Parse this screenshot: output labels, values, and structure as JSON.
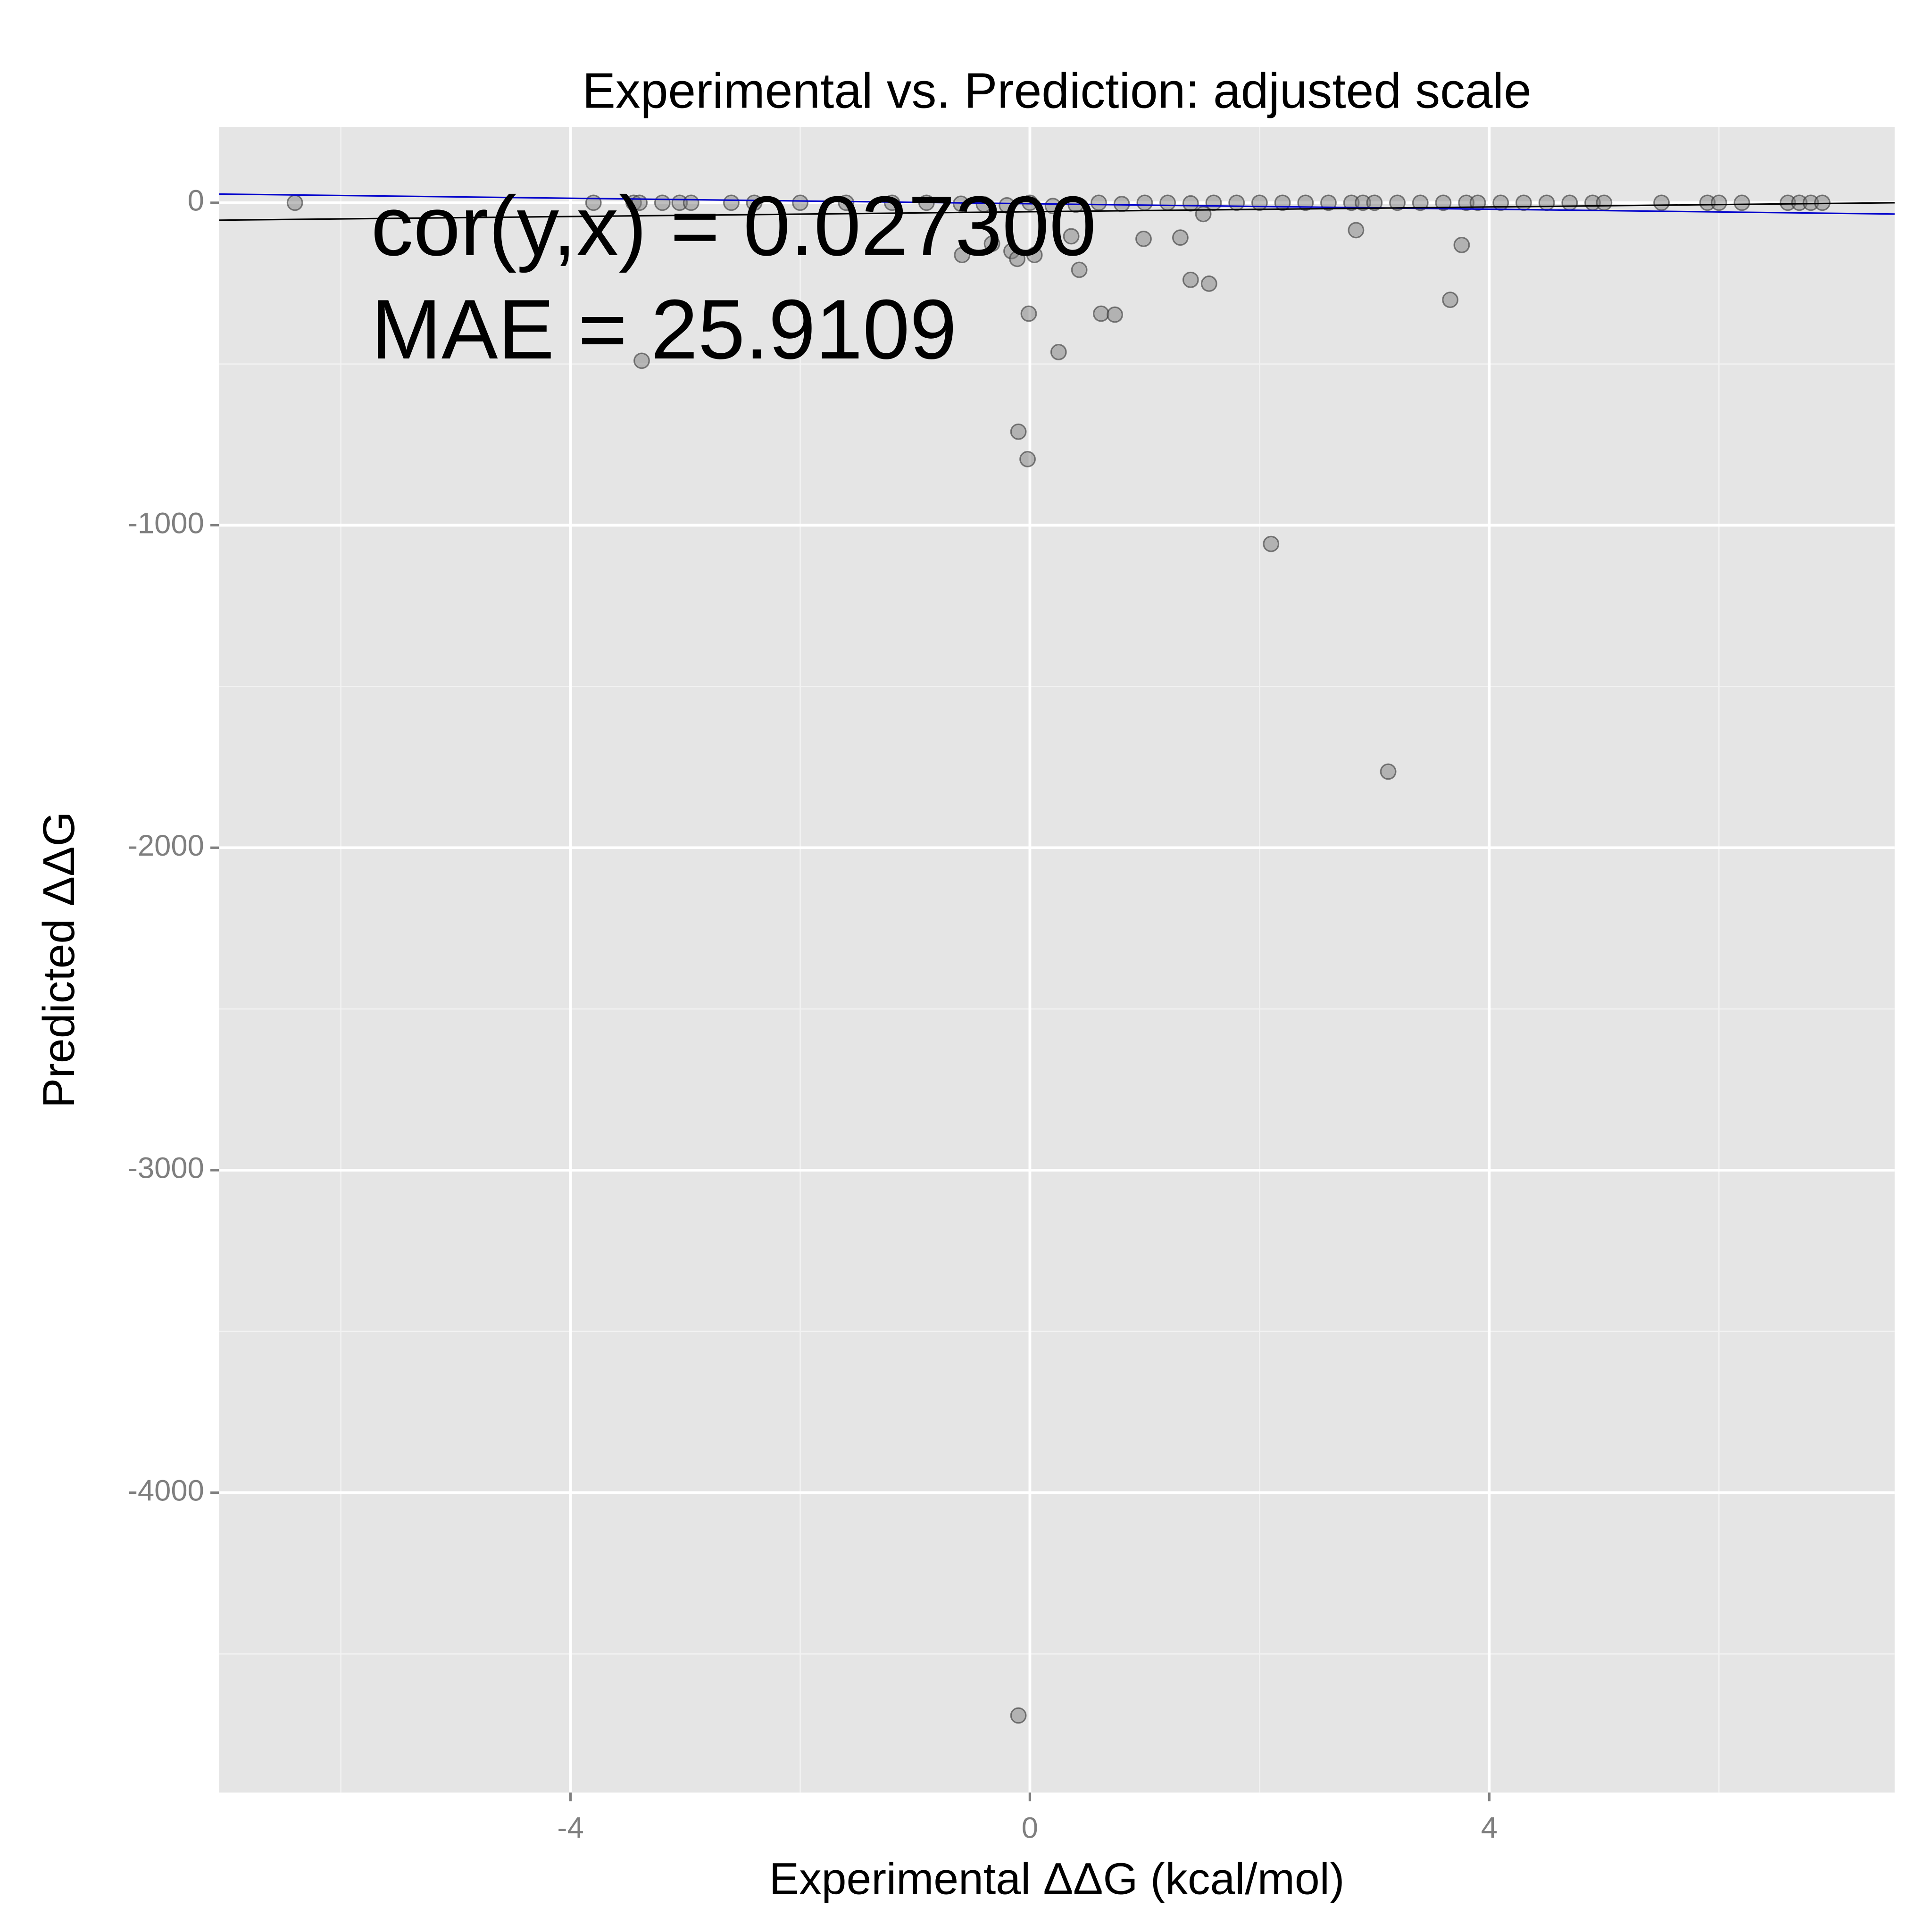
{
  "chart_data": {
    "type": "scatter",
    "title": "Experimental vs. Prediction: adjusted scale",
    "x_label": "Experimental ΔΔG (kcal/mol)",
    "y_label": "Predicted ΔΔG",
    "annotations": [
      "cor(y,x) = 0.027300",
      "MAE = 25.9109"
    ],
    "xlim": [
      -7.06,
      7.53
    ],
    "ylim": [
      -4930,
      235
    ],
    "xticks": [
      -4,
      0,
      4
    ],
    "yticks": [
      -4000,
      -3000,
      -2000,
      -1000,
      0
    ],
    "x_minor_grid": [
      -6,
      -2,
      2,
      6
    ],
    "y_minor_grid": [
      -4500,
      -3500,
      -2500,
      -1500,
      -500
    ],
    "grid": true,
    "color": "#7f7f7f",
    "x": [
      -6.4,
      -3.8,
      -3.45,
      -3.4,
      -3.2,
      -3.05,
      -2.95,
      -2.6,
      -2.4,
      -2.0,
      -1.6,
      -1.2,
      -0.9,
      -0.6,
      -0.4,
      -0.2,
      0.0,
      0.2,
      0.4,
      0.6,
      0.8,
      1.0,
      1.2,
      1.4,
      1.6,
      1.8,
      2.0,
      2.2,
      2.4,
      2.6,
      2.8,
      2.9,
      3.0,
      3.2,
      3.4,
      3.6,
      3.8,
      3.9,
      4.1,
      4.3,
      4.5,
      4.7,
      4.9,
      5.0,
      5.5,
      5.9,
      6.0,
      6.2,
      6.6,
      6.7,
      6.8,
      6.9,
      -3.38,
      -0.59,
      -0.33,
      -0.16,
      -0.11,
      -0.01,
      0.04,
      -0.1,
      -0.02,
      0.25,
      0.43,
      0.36,
      0.62,
      0.74,
      0.99,
      1.31,
      1.4,
      1.51,
      1.56,
      2.1,
      2.84,
      3.12,
      3.66,
      3.76,
      -0.1
    ],
    "y": [
      0,
      0,
      0,
      0,
      0,
      0,
      0,
      0,
      0,
      0,
      0,
      0,
      0,
      -3,
      -5,
      -8,
      0,
      -10,
      -6,
      0,
      -4,
      0,
      0,
      -2,
      0,
      0,
      0,
      0,
      0,
      0,
      0,
      0,
      0,
      0,
      0,
      0,
      0,
      0,
      0,
      0,
      0,
      0,
      0,
      0,
      0,
      0,
      0,
      0,
      0,
      0,
      0,
      0,
      -490,
      -162,
      -127,
      -150,
      -174,
      -344,
      -162,
      -710,
      -795,
      -463,
      -208,
      -104,
      -344,
      -347,
      -112,
      -108,
      -239,
      -35,
      -251,
      -1058,
      -85,
      -1764,
      -301,
      -131,
      -4691
    ],
    "fit_lines": [
      {
        "color": "#0000cc",
        "x": [
          -7.06,
          7.53
        ],
        "y": [
          27,
          -35
        ]
      },
      {
        "color": "#000000",
        "x": [
          -7.06,
          7.53
        ],
        "y": [
          -54,
          0
        ]
      }
    ]
  }
}
